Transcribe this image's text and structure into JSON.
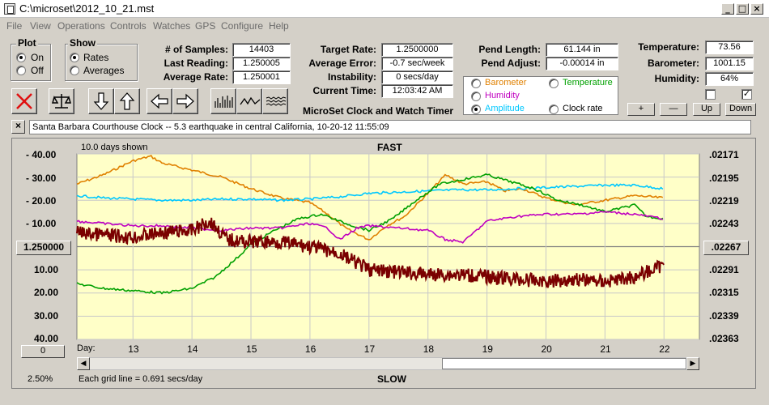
{
  "window": {
    "title": "C:\\microset\\2012_10_21.mst"
  },
  "menu": [
    "File",
    "View",
    "Operations",
    "Controls",
    "Watches",
    "GPS",
    "Configure",
    "Help"
  ],
  "plot": {
    "title": "Plot",
    "on": "On",
    "off": "Off"
  },
  "show": {
    "title": "Show",
    "rates": "Rates",
    "averages": "Averages"
  },
  "stats": {
    "samples_label": "# of Samples:",
    "samples": "14403",
    "last_label": "Last Reading:",
    "last": "1.250005",
    "avg_label": "Average Rate:",
    "avg": "1.250001",
    "target_label": "Target Rate:",
    "target": "1.2500000",
    "avgerr_label": "Average Error:",
    "avgerr": "-0.7 sec/week",
    "instab_label": "Instability:",
    "instab": "0 secs/day",
    "time_label": "Current Time:",
    "time": "12:03:42 AM",
    "pendlen_label": "Pend Length:",
    "pendlen": "61.144 in",
    "pendadj_label": "Pend Adjust:",
    "pendadj": "-0.00014 in",
    "temp_label": "Temperature:",
    "temp": "73.56",
    "baro_label": "Barometer:",
    "baro": "1001.15",
    "hum_label": "Humidity:",
    "hum": "64%"
  },
  "app_name": "MicroSet Clock and Watch Timer",
  "sensor_options": [
    {
      "label": "Barometer",
      "color": "#e08000",
      "selected": false
    },
    {
      "label": "Temperature",
      "color": "#00a000",
      "selected": false
    },
    {
      "label": "Humidity",
      "color": "#c000c0",
      "selected": false
    },
    {
      "label": "Clock rate",
      "color": "#000000",
      "selected": false
    },
    {
      "label": "Amplitude",
      "color": "#00c8ff",
      "selected": true
    }
  ],
  "buttons": {
    "plus": "+",
    "minus": "—",
    "up": "Up",
    "down": "Down",
    "center_left": "1.250000",
    "center_right": ".02267",
    "zero": "0"
  },
  "note": "Santa Barbara Courthouse Clock   --  5.3 earthquake in central California, 10-20-12 11:55:09",
  "chart_labels": {
    "days_shown": "10.0 days shown",
    "fast": "FAST",
    "slow": "SLOW",
    "day": "Day:",
    "grid_note": "Each grid line = 0.691 secs/day",
    "percent": "2.50%"
  },
  "chart_data": {
    "type": "line",
    "x_range": [
      12.05,
      22.6
    ],
    "x_ticks": [
      13,
      14,
      15,
      16,
      17,
      18,
      19,
      20,
      21,
      22
    ],
    "y_left_ticks": [
      "- 40.00",
      "- 30.00",
      "- 20.00",
      "- 10.00",
      "10.00",
      "20.00",
      "30.00",
      "40.00"
    ],
    "y_right_ticks": [
      ".02171",
      ".02195",
      ".02219",
      ".02243",
      ".02291",
      ".02315",
      ".02339",
      ".02363"
    ],
    "y_range": [
      -40,
      40
    ],
    "grid": true,
    "series": [
      {
        "color": "#e08000",
        "x": [
          12.05,
          12.5,
          13.0,
          13.3,
          13.5,
          14.0,
          14.5,
          15.0,
          15.5,
          16.0,
          16.3,
          16.6,
          17.0,
          17.3,
          17.6,
          18.0,
          18.3,
          18.6,
          19.0,
          19.3,
          19.6,
          20.0,
          20.5,
          21.0,
          21.5,
          22.0
        ],
        "y": [
          -27,
          -31,
          -37,
          -39,
          -36,
          -33,
          -30,
          -25,
          -21,
          -19,
          -14,
          -8,
          -3,
          -9,
          -13,
          -23,
          -31,
          -27,
          -28,
          -24,
          -25,
          -21,
          -18,
          -20,
          -22,
          -21
        ]
      },
      {
        "color": "#00c8ff",
        "x": [
          12.05,
          12.5,
          13.0,
          13.5,
          14.0,
          14.5,
          15.0,
          15.5,
          16.0,
          16.5,
          17.0,
          17.5,
          18.0,
          18.5,
          19.0,
          19.5,
          20.0,
          20.5,
          21.0,
          21.5,
          22.0
        ],
        "y": [
          -22,
          -21,
          -20.5,
          -20,
          -20,
          -20.5,
          -20.5,
          -20,
          -20.5,
          -21.5,
          -23,
          -23.5,
          -24,
          -24.5,
          -24.5,
          -25,
          -25.5,
          -26,
          -26.5,
          -26.5,
          -25
        ]
      },
      {
        "color": "#00a000",
        "x": [
          12.05,
          12.5,
          13.0,
          13.5,
          14.0,
          14.4,
          14.8,
          15.0,
          15.4,
          15.8,
          16.2,
          16.6,
          17.0,
          17.4,
          17.8,
          18.2,
          18.6,
          19.0,
          19.4,
          19.8,
          20.2,
          20.6,
          21.0,
          21.5,
          21.7,
          22.0
        ],
        "y": [
          16,
          18,
          19,
          20,
          18,
          13,
          4,
          -1,
          -7,
          -12,
          -14,
          -10,
          -7,
          -12,
          -20,
          -27,
          -29,
          -31,
          -28,
          -25,
          -20,
          -18,
          -15,
          -18,
          -13,
          -12
        ]
      },
      {
        "color": "#c000c0",
        "x": [
          12.05,
          12.5,
          13.0,
          13.5,
          14.0,
          14.5,
          15.0,
          15.5,
          16.0,
          16.3,
          16.5,
          16.8,
          17.0,
          17.5,
          18.0,
          18.3,
          18.6,
          19.0,
          19.5,
          20.0,
          20.5,
          21.0,
          21.5,
          22.0
        ],
        "y": [
          -11,
          -10,
          -9,
          -9,
          -8,
          -7,
          -8,
          -8,
          -10,
          -8,
          -3,
          -8,
          -9,
          -8,
          -7,
          -3,
          -2,
          -11,
          -13,
          -14,
          -14,
          -15,
          -14,
          -12
        ]
      },
      {
        "color": "#7a0000",
        "x": [
          12.05,
          12.5,
          13.0,
          13.5,
          14.0,
          14.3,
          14.6,
          15.0,
          15.5,
          16.0,
          16.5,
          17.0,
          17.5,
          18.0,
          18.5,
          19.0,
          19.5,
          20.0,
          20.5,
          21.0,
          21.5,
          21.8,
          22.0
        ],
        "y": [
          -6,
          -5,
          -4,
          -6,
          -7,
          -11,
          -3,
          -2,
          -2,
          0,
          3,
          10,
          11,
          12,
          12,
          13,
          14,
          15,
          14,
          15,
          13,
          10,
          8
        ],
        "noisy": true
      }
    ]
  }
}
